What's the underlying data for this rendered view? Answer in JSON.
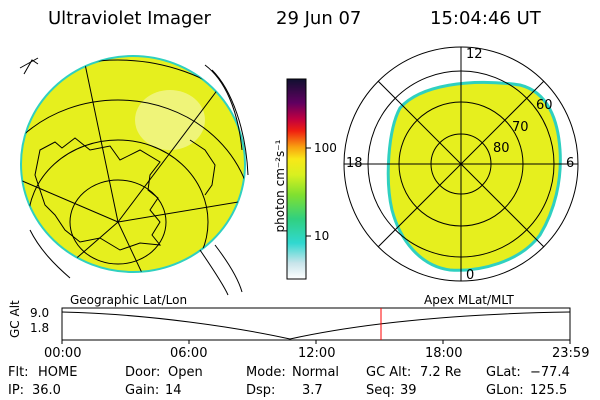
{
  "header": {
    "title": "Ultraviolet Imager",
    "date": "29 Jun 07",
    "time": "15:04:46 UT"
  },
  "colorbar": {
    "unit_label": "photon cm⁻²s⁻¹",
    "ticks": [
      "100",
      "10"
    ]
  },
  "polar_plot": {
    "clock_labels": {
      "top": "12",
      "left": "18",
      "right": "6",
      "bottom": "0"
    },
    "lat_labels": [
      "60",
      "70",
      "80"
    ]
  },
  "projection_labels": {
    "left": "Geographic Lat/Lon",
    "right": "Apex MLat/MLT"
  },
  "altitude_plot": {
    "axis_label": "GC Alt",
    "y_ticks": [
      "9.0",
      "1.8"
    ],
    "x_ticks": [
      "00:00",
      "06:00",
      "12:00",
      "18:00",
      "23:59"
    ],
    "current_time": "15:04:46"
  },
  "status": {
    "flt_label": "Flt:",
    "flt_value": "HOME",
    "ip_label": "IP:",
    "ip_value": "36.0",
    "door_label": "Door:",
    "door_value": "Open",
    "gain_label": "Gain:",
    "gain_value": "14",
    "mode_label": "Mode:",
    "mode_value": "Normal",
    "dsp_label": "Dsp:",
    "dsp_value": "3.7",
    "gcalt_label": "GC Alt:",
    "gcalt_value": "7.2 Re",
    "seq_label": "Seq:",
    "seq_value": "39",
    "glat_label": "GLat:",
    "glat_value": "−77.4",
    "glon_label": "GLon:",
    "glon_value": "125.5"
  },
  "colors": {
    "emission_fill": "#e6ef1e",
    "emission_edge": "#2fd0c0",
    "marker": "#ff0000"
  }
}
